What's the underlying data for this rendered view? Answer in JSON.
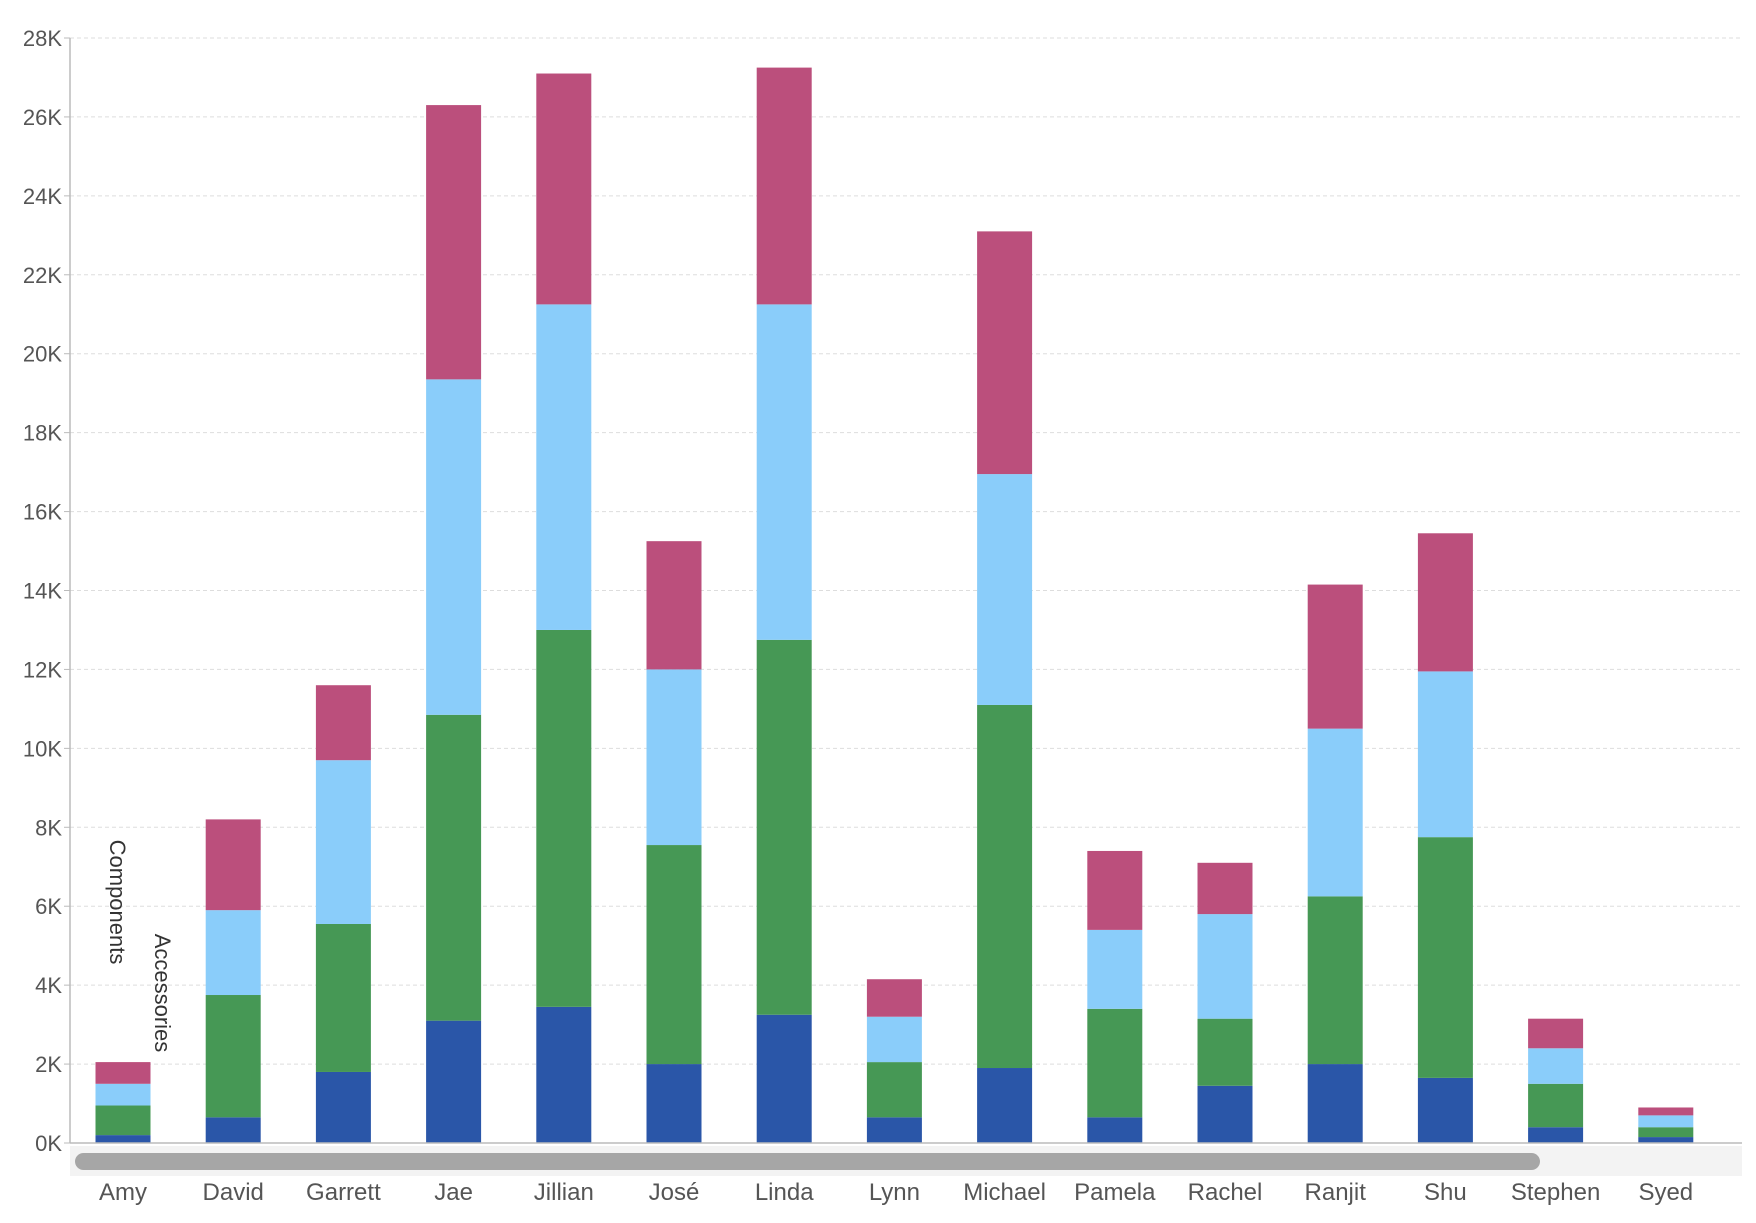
{
  "chart_data": {
    "type": "bar",
    "stacked": true,
    "title": "",
    "xlabel": "",
    "ylabel": "",
    "ylim": [
      0,
      28000
    ],
    "y_ticks": [
      {
        "value": 0,
        "label": "0K"
      },
      {
        "value": 2000,
        "label": "2K"
      },
      {
        "value": 4000,
        "label": "4K"
      },
      {
        "value": 6000,
        "label": "6K"
      },
      {
        "value": 8000,
        "label": "8K"
      },
      {
        "value": 10000,
        "label": "10K"
      },
      {
        "value": 12000,
        "label": "12K"
      },
      {
        "value": 14000,
        "label": "14K"
      },
      {
        "value": 16000,
        "label": "16K"
      },
      {
        "value": 18000,
        "label": "18K"
      },
      {
        "value": 20000,
        "label": "20K"
      },
      {
        "value": 22000,
        "label": "22K"
      },
      {
        "value": 24000,
        "label": "24K"
      },
      {
        "value": 26000,
        "label": "26K"
      },
      {
        "value": 28000,
        "label": "28K"
      }
    ],
    "grid": true,
    "categories": [
      "Amy",
      "David",
      "Garrett",
      "Jae",
      "Jillian",
      "José",
      "Linda",
      "Lynn",
      "Michael",
      "Pamela",
      "Rachel",
      "Ranjit",
      "Shu",
      "Stephen",
      "Syed"
    ],
    "series": [
      {
        "name": "Accessories",
        "color": "#2a56a8",
        "values": [
          200,
          650,
          1800,
          3100,
          3450,
          2000,
          3250,
          650,
          1900,
          650,
          1450,
          2000,
          1650,
          400,
          150
        ]
      },
      {
        "name": "Components",
        "color": "#469855",
        "values": [
          750,
          3100,
          3750,
          7750,
          9550,
          5550,
          9500,
          1400,
          9200,
          2750,
          1700,
          4250,
          6100,
          1100,
          250
        ]
      },
      {
        "name": "",
        "color": "#8acdfa",
        "values": [
          550,
          2150,
          4150,
          8500,
          8250,
          4450,
          8500,
          1150,
          5850,
          2000,
          2650,
          4250,
          4200,
          900,
          300
        ]
      },
      {
        "name": "",
        "color": "#bb4f7c",
        "values": [
          550,
          2300,
          1900,
          6950,
          5850,
          3250,
          6000,
          950,
          6150,
          2000,
          1300,
          3650,
          3500,
          750,
          200
        ]
      }
    ]
  }
}
